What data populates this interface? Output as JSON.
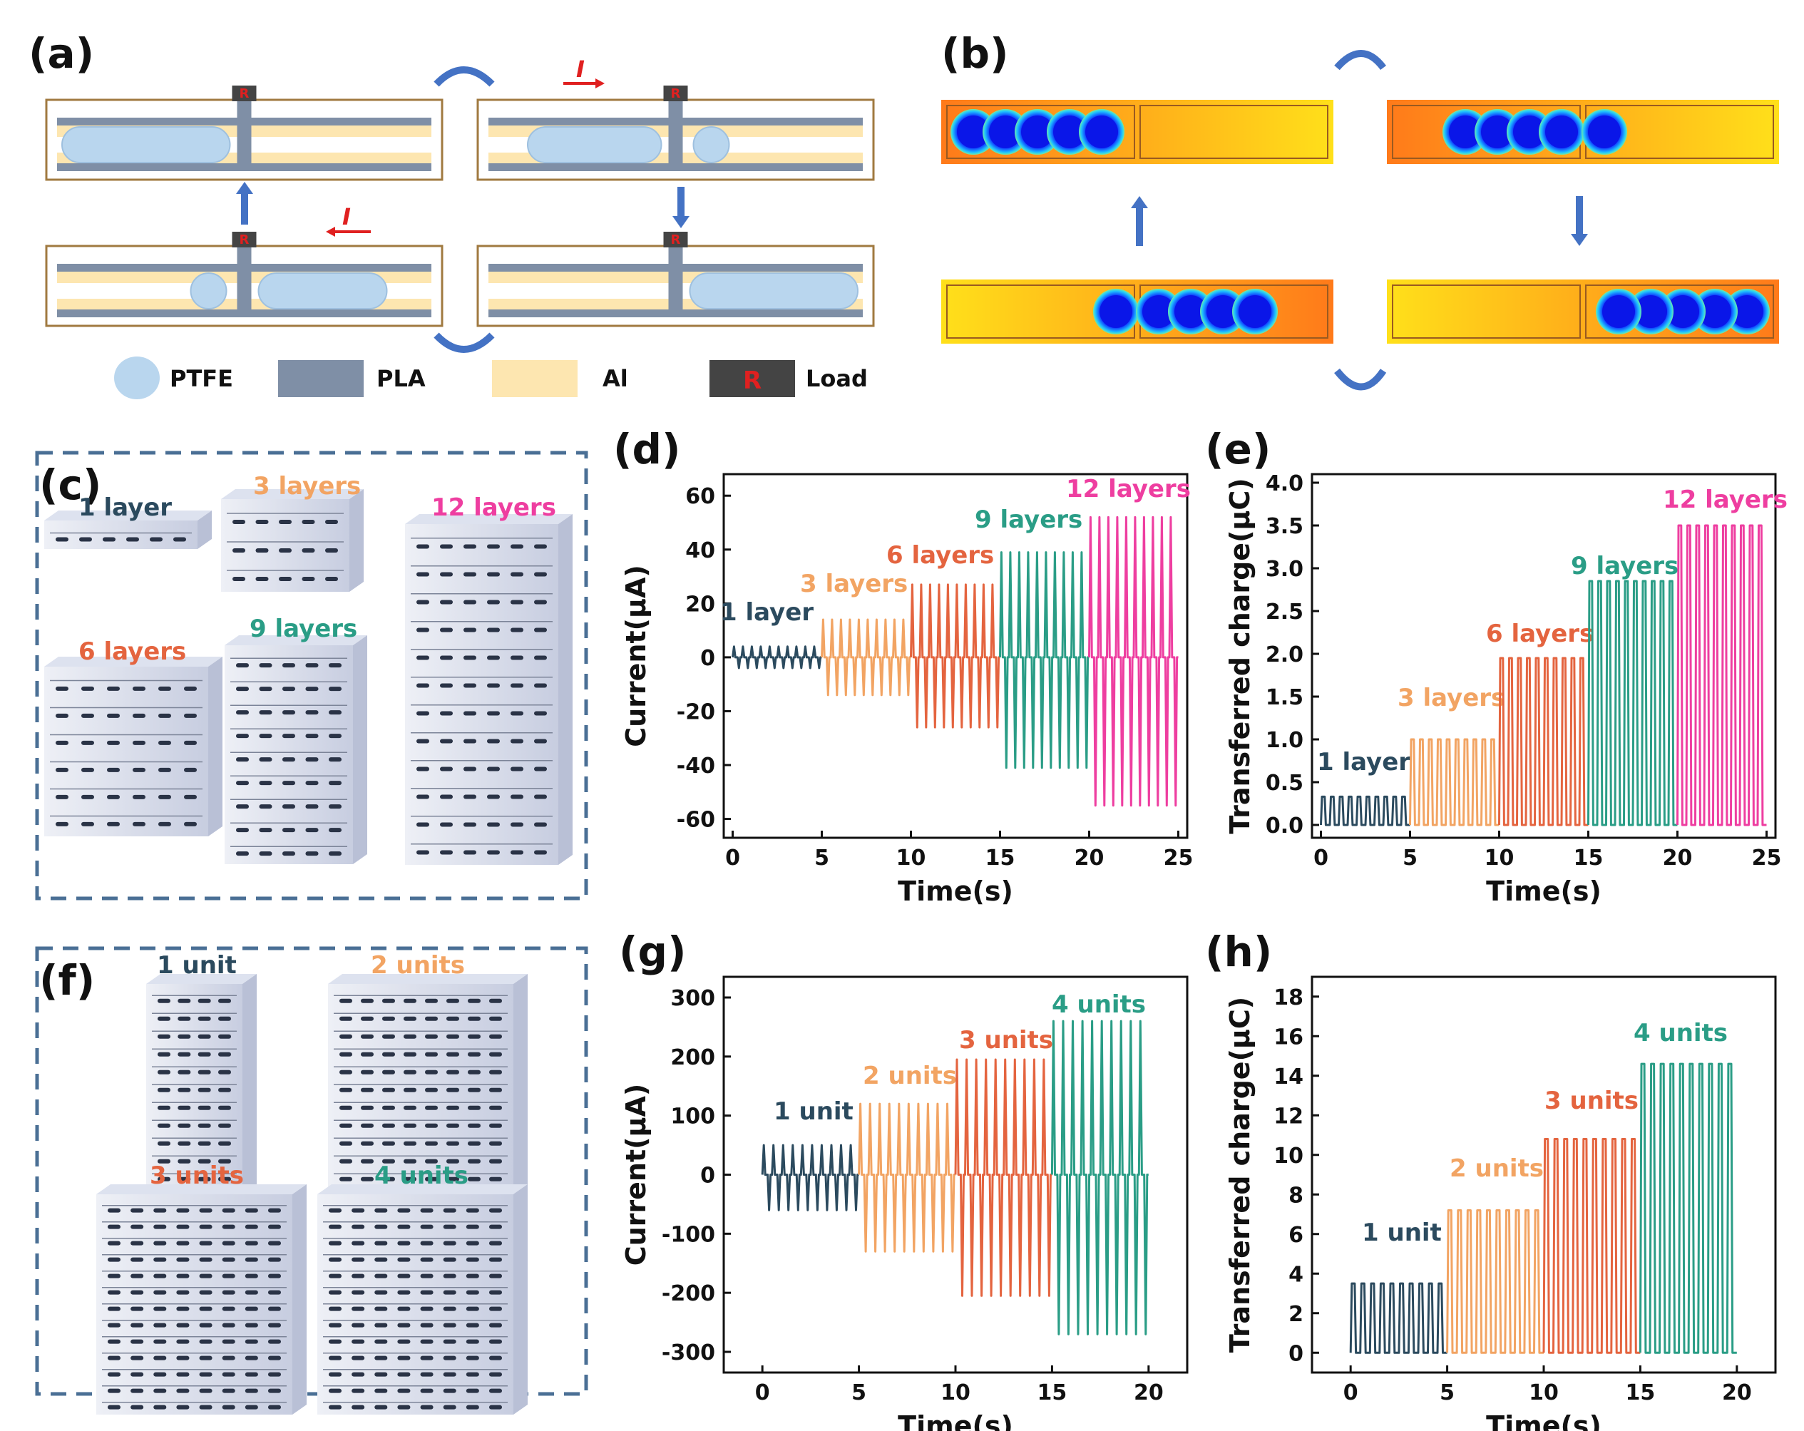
{
  "panels": {
    "a": "(a)",
    "b": "(b)",
    "c": "(c)",
    "d": "(d)",
    "e": "(e)",
    "f": "(f)",
    "g": "(g)",
    "h": "(h)"
  },
  "schematic": {
    "resistor": "R",
    "current_symbol": "I",
    "legend": [
      {
        "name": "PTFE",
        "color": "#b9d6ee"
      },
      {
        "name": "PLA",
        "color": "#7f8fa6"
      },
      {
        "name": "Al",
        "color": "#fde6b0"
      },
      {
        "name": "Load",
        "color": "#444444"
      }
    ]
  },
  "colors": {
    "navy": "#2b4a5e",
    "orange": "#f2a463",
    "red": "#e4643f",
    "teal": "#2a9d86",
    "pink": "#ee3ea0"
  },
  "stack_labels_c": [
    "1 layer",
    "3 layers",
    "6 layers",
    "9 layers",
    "12 layers"
  ],
  "stack_labels_f": [
    "1 unit",
    "2 units",
    "3 units",
    "4 units"
  ],
  "chart_data": [
    {
      "id": "d",
      "type": "line",
      "xlabel": "Time(s)",
      "ylabel": "Current(μA)",
      "xlim": [
        -0.5,
        25.5
      ],
      "ylim": [
        -67,
        68
      ],
      "xticks": [
        0,
        5,
        10,
        15,
        20,
        25
      ],
      "yticks": [
        60,
        40,
        20,
        0,
        -20,
        -40,
        -60
      ],
      "series": [
        {
          "name": "1 layer",
          "x": [
            0,
            5
          ],
          "max": 4,
          "min": -4,
          "color": "#2b4a5e"
        },
        {
          "name": "3 layers",
          "x": [
            5,
            10
          ],
          "max": 14,
          "min": -14,
          "color": "#f2a463"
        },
        {
          "name": "6 layers",
          "x": [
            10,
            15
          ],
          "max": 27,
          "min": -26,
          "color": "#e4643f"
        },
        {
          "name": "9 layers",
          "x": [
            15,
            20
          ],
          "max": 39,
          "min": -41,
          "color": "#2a9d86"
        },
        {
          "name": "12 layers",
          "x": [
            20,
            25
          ],
          "max": 52,
          "min": -55,
          "color": "#ee3ea0"
        }
      ]
    },
    {
      "id": "e",
      "type": "line",
      "xlabel": "Time(s)",
      "ylabel": "Transferred charge(μC)",
      "xlim": [
        -0.5,
        25.5
      ],
      "ylim": [
        -0.15,
        4.1
      ],
      "xticks": [
        0,
        5,
        10,
        15,
        20,
        25
      ],
      "yticks": [
        4.0,
        3.5,
        3.0,
        2.5,
        2.0,
        1.5,
        1.0,
        0.5,
        0.0
      ],
      "series": [
        {
          "name": "1 layer",
          "x": [
            0,
            5
          ],
          "max": 0.33,
          "min": 0,
          "color": "#2b4a5e"
        },
        {
          "name": "3 layers",
          "x": [
            5,
            10
          ],
          "max": 1.0,
          "min": 0,
          "color": "#f2a463"
        },
        {
          "name": "6 layers",
          "x": [
            10,
            15
          ],
          "max": 1.95,
          "min": 0,
          "color": "#e4643f"
        },
        {
          "name": "9 layers",
          "x": [
            15,
            20
          ],
          "max": 2.85,
          "min": 0,
          "color": "#2a9d86"
        },
        {
          "name": "12 layers",
          "x": [
            20,
            25
          ],
          "max": 3.5,
          "min": 0,
          "color": "#ee3ea0"
        }
      ]
    },
    {
      "id": "g",
      "type": "line",
      "xlabel": "Time(s)",
      "ylabel": "Current(μA)",
      "xlim": [
        -2,
        22
      ],
      "ylim": [
        -335,
        335
      ],
      "xticks": [
        0,
        5,
        10,
        15,
        20
      ],
      "yticks": [
        300,
        200,
        100,
        0,
        -100,
        -200,
        -300
      ],
      "series": [
        {
          "name": "1 unit",
          "x": [
            0,
            5
          ],
          "max": 50,
          "min": -60,
          "color": "#2b4a5e"
        },
        {
          "name": "2 units",
          "x": [
            5,
            10
          ],
          "max": 120,
          "min": -130,
          "color": "#f2a463"
        },
        {
          "name": "3 units",
          "x": [
            10,
            15
          ],
          "max": 195,
          "min": -205,
          "color": "#e4643f"
        },
        {
          "name": "4 units",
          "x": [
            15,
            20
          ],
          "max": 260,
          "min": -270,
          "color": "#2a9d86"
        }
      ]
    },
    {
      "id": "h",
      "type": "line",
      "xlabel": "Time(s)",
      "ylabel": "Transferred charge(μC)",
      "xlim": [
        -2,
        22
      ],
      "ylim": [
        -1,
        19
      ],
      "xticks": [
        0,
        5,
        10,
        15,
        20
      ],
      "yticks": [
        18,
        16,
        14,
        12,
        10,
        8,
        6,
        4,
        2,
        0
      ],
      "series": [
        {
          "name": "1 unit",
          "x": [
            0,
            5
          ],
          "max": 3.5,
          "min": 0,
          "color": "#2b4a5e"
        },
        {
          "name": "2 units",
          "x": [
            5,
            10
          ],
          "max": 7.2,
          "min": 0,
          "color": "#f2a463"
        },
        {
          "name": "3 units",
          "x": [
            10,
            15
          ],
          "max": 10.8,
          "min": 0,
          "color": "#e4643f"
        },
        {
          "name": "4 units",
          "x": [
            15,
            20
          ],
          "max": 14.6,
          "min": 0,
          "color": "#2a9d86"
        }
      ]
    }
  ]
}
